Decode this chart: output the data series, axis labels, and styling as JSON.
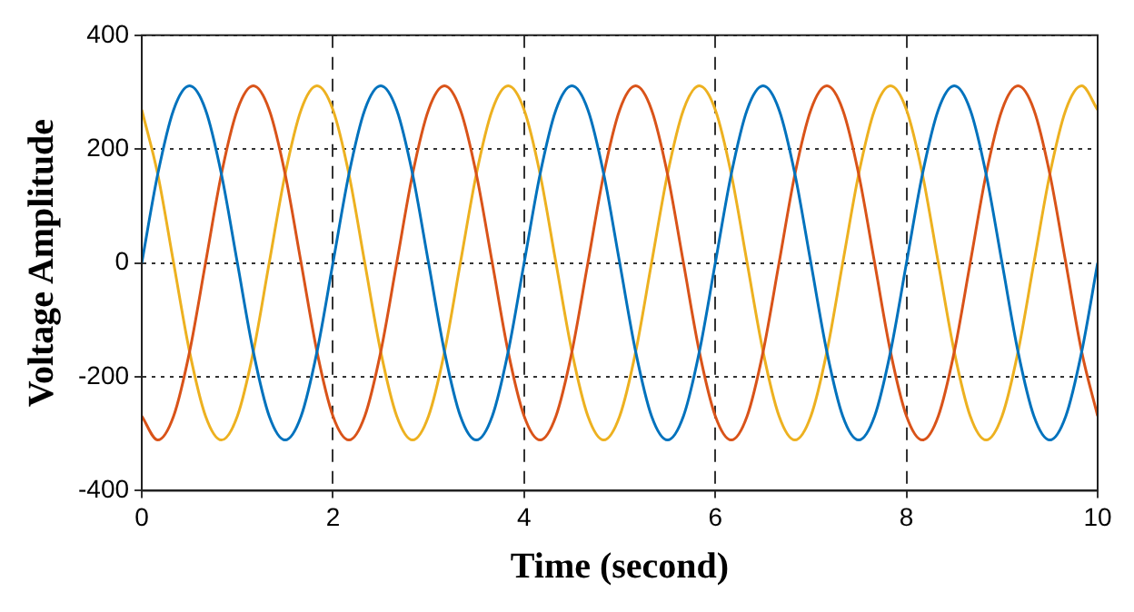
{
  "chart_data": {
    "type": "line",
    "xlabel": "Time (second)",
    "ylabel": "Voltage Amplitude",
    "x": [
      0,
      0.167,
      0.333,
      0.5,
      0.667,
      0.833,
      1,
      1.167,
      1.333,
      1.5,
      1.667,
      1.833,
      2,
      2.167,
      2.333,
      2.5,
      2.667,
      2.833,
      3,
      3.167,
      3.333,
      3.5,
      3.667,
      3.833,
      4,
      4.167,
      4.333,
      4.5,
      4.667,
      4.833,
      5,
      5.167,
      5.333,
      5.5,
      5.667,
      5.833,
      6,
      6.167,
      6.333,
      6.5,
      6.667,
      6.833,
      7,
      7.167,
      7.333,
      7.5,
      7.667,
      7.833,
      8,
      8.167,
      8.333,
      8.5,
      8.667,
      8.833,
      9,
      9.167,
      9.333,
      9.5,
      9.667,
      9.833,
      10
    ],
    "series": [
      {
        "color": "#0072bd",
        "values": [
          0,
          156,
          269,
          311,
          269,
          156,
          0,
          -156,
          -269,
          -311,
          -269,
          -156,
          0,
          156,
          269,
          311,
          269,
          156,
          0,
          -156,
          -269,
          -311,
          -269,
          -156,
          0,
          156,
          269,
          311,
          269,
          156,
          0,
          -156,
          -269,
          -311,
          -269,
          -156,
          0,
          156,
          269,
          311,
          269,
          156,
          0,
          -156,
          -269,
          -311,
          -269,
          -156,
          0,
          156,
          269,
          311,
          269,
          156,
          0,
          -156,
          -269,
          -311,
          -269,
          -156,
          0
        ]
      },
      {
        "color": "#d95319",
        "values": [
          -269,
          -311,
          -269,
          -156,
          0,
          156,
          269,
          311,
          269,
          156,
          0,
          -156,
          -269,
          -311,
          -269,
          -156,
          0,
          156,
          269,
          311,
          269,
          156,
          0,
          -156,
          -269,
          -311,
          -269,
          -156,
          0,
          156,
          269,
          311,
          269,
          156,
          0,
          -156,
          -269,
          -311,
          -269,
          -156,
          0,
          156,
          269,
          311,
          269,
          156,
          0,
          -156,
          -269,
          -311,
          -269,
          -156,
          0,
          156,
          269,
          311,
          269,
          156,
          0,
          -156,
          -269
        ]
      },
      {
        "color": "#edb120",
        "values": [
          269,
          156,
          0,
          -156,
          -269,
          -311,
          -269,
          -156,
          0,
          156,
          269,
          311,
          269,
          156,
          0,
          -156,
          -269,
          -311,
          -269,
          -156,
          0,
          156,
          269,
          311,
          269,
          156,
          0,
          -156,
          -269,
          -311,
          -269,
          -156,
          0,
          156,
          269,
          311,
          269,
          156,
          0,
          -156,
          -269,
          -311,
          -269,
          -156,
          0,
          156,
          269,
          311,
          269,
          156,
          0,
          -156,
          -269,
          -311,
          -269,
          -156,
          0,
          156,
          269,
          311,
          269
        ]
      }
    ],
    "xlim": [
      0,
      10
    ],
    "xticks": [
      0,
      2,
      4,
      6,
      8,
      10
    ],
    "ylim": [
      -400,
      400
    ],
    "yticks": [
      -400,
      -200,
      0,
      200,
      400
    ],
    "grid": true,
    "legend": false,
    "marker": "none",
    "line_style": "solid"
  }
}
